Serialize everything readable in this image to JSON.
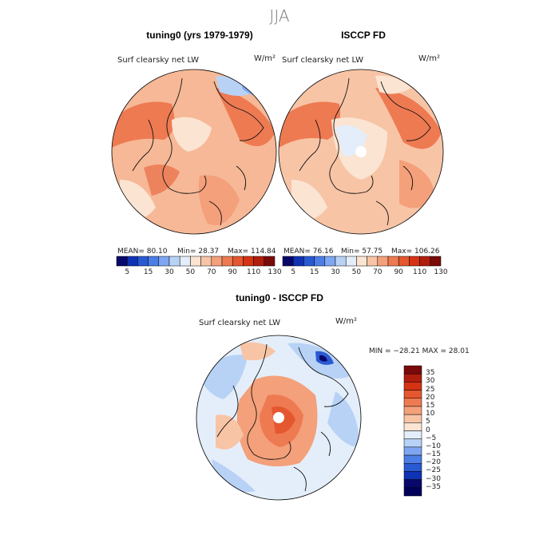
{
  "season": "JJA",
  "variable": "Surf clearsky net LW",
  "units": "W/m²",
  "panels": [
    {
      "title": "tuning0 (yrs 1979-1979)",
      "stats": {
        "mean": "MEAN=  80.10",
        "min": "Min=  28.37",
        "max": "Max= 114.84"
      }
    },
    {
      "title": "ISCCP FD",
      "stats": {
        "mean": "MEAN=  76.16",
        "min": "Min=  57.75",
        "max": "Max= 106.26"
      }
    }
  ],
  "difference": {
    "title": "tuning0 - ISCCP FD",
    "minmax": "MIN = −28.21  MAX =  28.01"
  },
  "colorbar_top": {
    "colors": [
      "#08086b",
      "#1032b4",
      "#2a5ad2",
      "#4d7ee6",
      "#7ea6f2",
      "#b8d2f6",
      "#e4eefa",
      "#fbe4d2",
      "#f8c4a6",
      "#f4a07a",
      "#ee7a52",
      "#e5572e",
      "#d63214",
      "#b01e0e",
      "#7a0a0a"
    ],
    "labels": [
      "5",
      "15",
      "30",
      "50",
      "70",
      "90",
      "110",
      "130"
    ]
  },
  "colorbar_diff": {
    "colors": [
      "#7a0a0a",
      "#b01e0e",
      "#d63214",
      "#e5572e",
      "#ee7a52",
      "#f4a07a",
      "#f8c4a6",
      "#fbe4d2",
      "#e4eefa",
      "#b8d2f6",
      "#7ea6f2",
      "#4d7ee6",
      "#2a5ad2",
      "#1032b4",
      "#08086b",
      "#00005a"
    ],
    "labels": [
      "35",
      "30",
      "25",
      "20",
      "15",
      "10",
      "5",
      "0",
      "−5",
      "−10",
      "−15",
      "−20",
      "−25",
      "−30",
      "−35"
    ]
  }
}
